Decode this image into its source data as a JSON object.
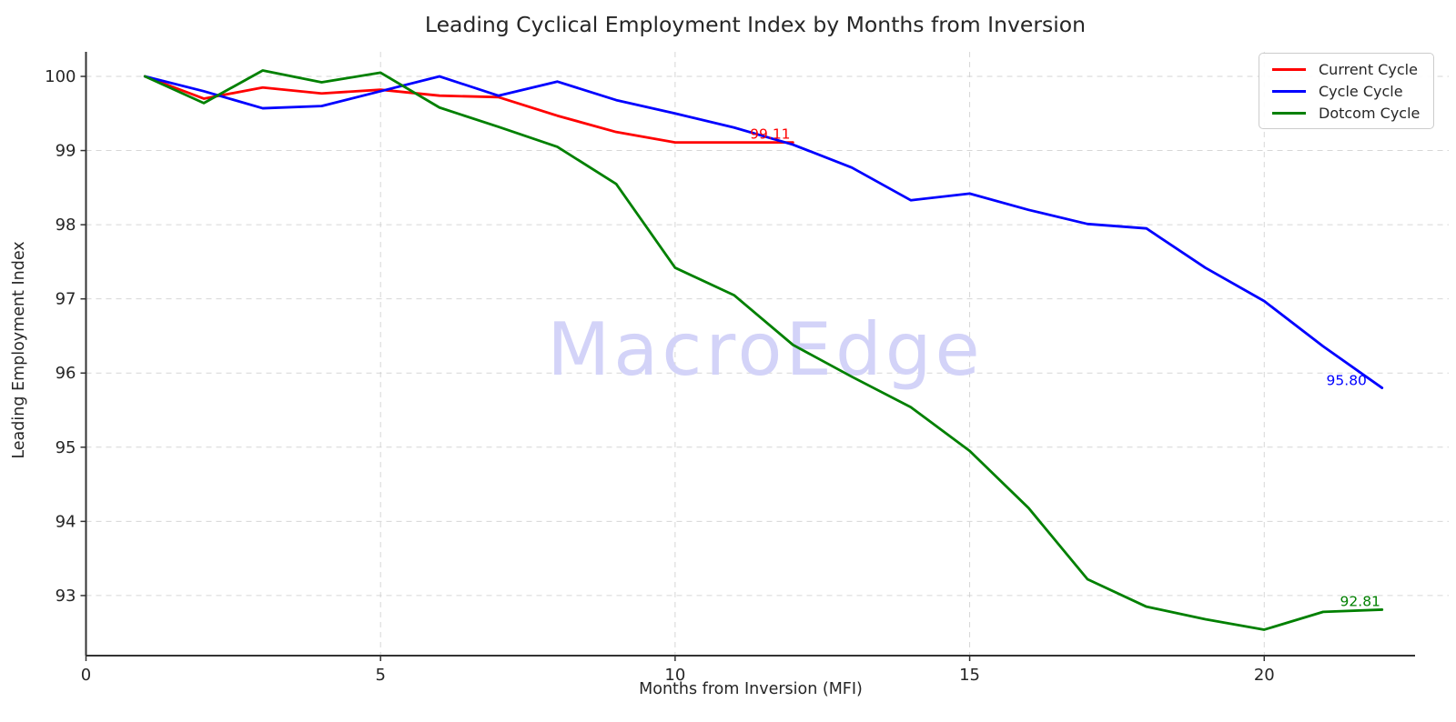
{
  "chart_data": {
    "type": "line",
    "title": "Leading Cyclical Employment Index by Months from Inversion",
    "xlabel": "Months from Inversion (MFI)",
    "ylabel": "Leading Employment Index",
    "watermark": "MacroEdge",
    "watermark_color": "#d3d3f8",
    "grid": true,
    "legend_position": "upper right",
    "xlim": [
      0,
      22.56
    ],
    "ylim": [
      92.19,
      100.331
    ],
    "xticks": [
      0,
      5,
      10,
      15,
      20
    ],
    "yticks": [
      93,
      94,
      95,
      96,
      97,
      98,
      99,
      100
    ],
    "x": [
      1,
      2,
      3,
      4,
      5,
      6,
      7,
      8,
      9,
      10,
      11,
      12,
      13,
      14,
      15,
      16,
      17,
      18,
      19,
      20,
      21,
      22
    ],
    "series": [
      {
        "name": "Current Cycle",
        "color": "#ff0000",
        "end_label": "99.11",
        "values": [
          100.0,
          99.7,
          99.85,
          99.77,
          99.82,
          99.74,
          99.72,
          99.47,
          99.25,
          99.11,
          99.11,
          99.11
        ]
      },
      {
        "name": "Cycle Cycle",
        "color": "#0000ff",
        "end_label": "95.80",
        "values": [
          100.0,
          99.8,
          99.57,
          99.6,
          99.8,
          100.0,
          99.74,
          99.93,
          99.68,
          99.5,
          99.31,
          99.08,
          98.77,
          98.33,
          98.42,
          98.2,
          98.01,
          97.95,
          97.42,
          96.97,
          96.36,
          95.8
        ]
      },
      {
        "name": "Dotcom Cycle",
        "color": "#008000",
        "end_label": "92.81",
        "values": [
          100.0,
          99.64,
          100.08,
          99.92,
          100.05,
          99.58,
          99.32,
          99.05,
          98.55,
          97.42,
          97.05,
          96.38,
          95.95,
          95.54,
          94.95,
          94.18,
          93.22,
          92.85,
          92.68,
          92.54,
          92.78,
          92.81
        ]
      }
    ],
    "axis_color": "#333333",
    "grid_color": "#c9c9c9",
    "text_color": "#262626"
  }
}
